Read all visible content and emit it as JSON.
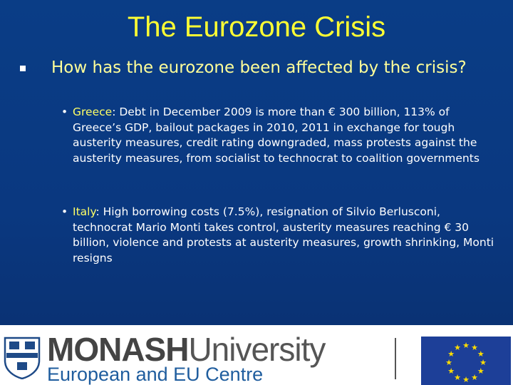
{
  "slide": {
    "title": "The Eurozone Crisis",
    "main_bullet": "How has the eurozone been affected by the crisis?",
    "sub_bullets": [
      {
        "name": "Greece",
        "text": ": Debt in December 2009 is more than € 300 billion, 113% of Greece’s GDP, bailout packages in 2010, 2011 in exchange for tough austerity measures, credit rating downgraded, mass protests against the austerity measures, from socialist to technocrat to coalition governments"
      },
      {
        "name": "Italy",
        "text": ": High borrowing costs (7.5%), resignation of Silvio Berlusconi, technocrat Mario Monti takes control, austerity measures reaching € 30 billion, violence and protests at austerity measures, growth shrinking, Monti resigns"
      }
    ]
  },
  "footer": {
    "brand_strong": "MONASH",
    "brand_light": "University",
    "centre": "European and EU Centre"
  },
  "colors": {
    "background": "#0a3880",
    "title": "#ffff33",
    "accent_text": "#ffff99",
    "eu_flag": "#1d3f98",
    "eu_star": "#ffdd00",
    "centre_text": "#1f5d9e"
  },
  "icons": [
    "square-bullet-icon",
    "monash-crest-icon",
    "eu-flag-icon"
  ]
}
